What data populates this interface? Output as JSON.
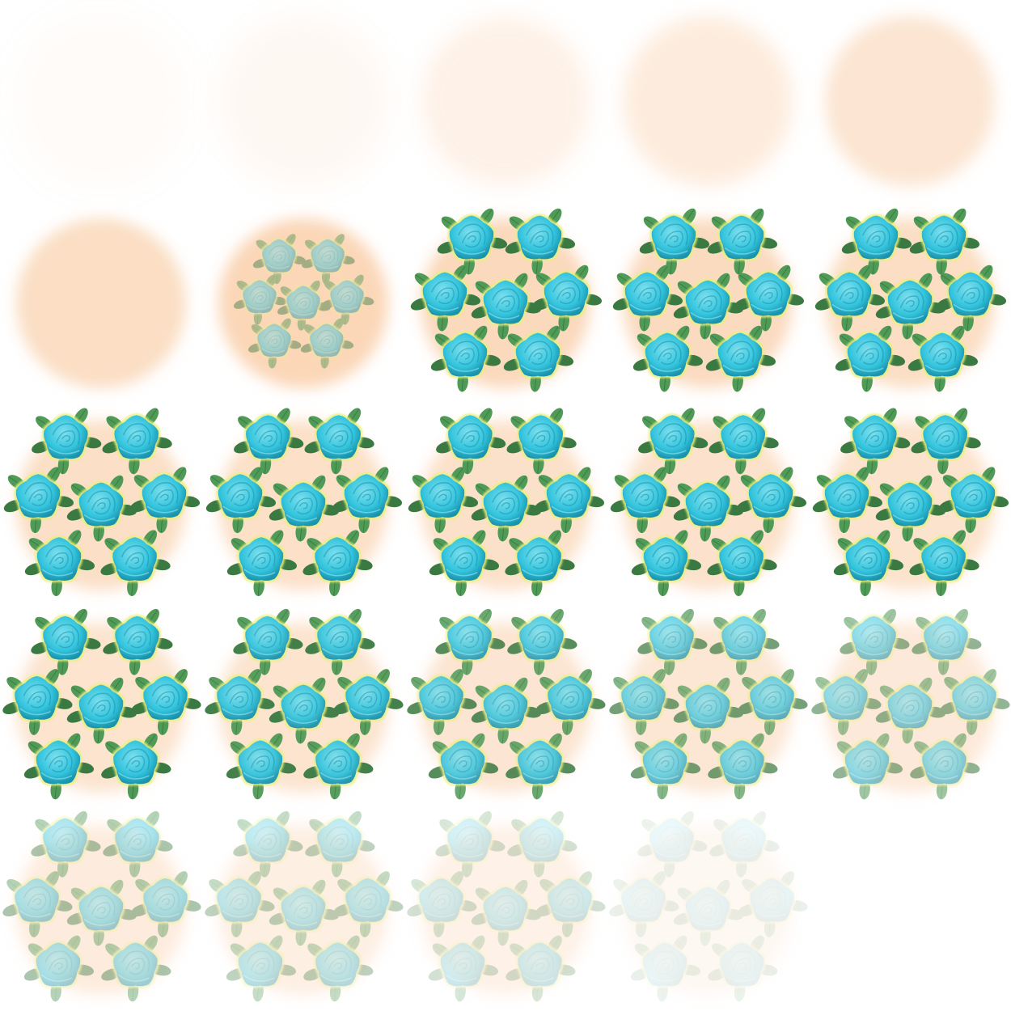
{
  "sheet": {
    "columns": 5,
    "rows": 5,
    "background": "#ffffff",
    "colors": {
      "glow": "#f9c9a0",
      "rose": "#33c4dd",
      "rose_light": "#7fe0ee",
      "rose_dark": "#1b93ad",
      "leaf": "#4f9a56",
      "leaf_dark": "#3a7a42",
      "rim": "#e9f07a"
    },
    "frames": [
      {
        "glow": 0.07,
        "glow_blur": 1.0,
        "roses": 0.0,
        "spread": 0.0
      },
      {
        "glow": 0.13,
        "glow_blur": 0.8,
        "roses": 0.0,
        "spread": 0.0
      },
      {
        "glow": 0.24,
        "glow_blur": 0.55,
        "roses": 0.0,
        "spread": 0.0
      },
      {
        "glow": 0.35,
        "glow_blur": 0.45,
        "roses": 0.0,
        "spread": 0.0
      },
      {
        "glow": 0.48,
        "glow_blur": 0.35,
        "roses": 0.0,
        "spread": 0.0
      },
      {
        "glow": 0.62,
        "glow_blur": 0.3,
        "roses": 0.0,
        "spread": 0.0
      },
      {
        "glow": 0.75,
        "glow_blur": 0.3,
        "roses": 0.45,
        "spread": 0.72
      },
      {
        "glow": 0.7,
        "glow_blur": 0.3,
        "roses": 1.0,
        "spread": 1.0
      },
      {
        "glow": 0.66,
        "glow_blur": 0.3,
        "roses": 1.0,
        "spread": 1.0
      },
      {
        "glow": 0.62,
        "glow_blur": 0.3,
        "roses": 1.0,
        "spread": 1.0
      },
      {
        "glow": 0.6,
        "glow_blur": 0.3,
        "roses": 1.0,
        "spread": 1.04
      },
      {
        "glow": 0.58,
        "glow_blur": 0.3,
        "roses": 1.0,
        "spread": 1.04
      },
      {
        "glow": 0.56,
        "glow_blur": 0.3,
        "roses": 1.0,
        "spread": 1.04
      },
      {
        "glow": 0.54,
        "glow_blur": 0.3,
        "roses": 1.0,
        "spread": 1.04
      },
      {
        "glow": 0.52,
        "glow_blur": 0.3,
        "roses": 1.0,
        "spread": 1.04
      },
      {
        "glow": 0.5,
        "glow_blur": 0.3,
        "roses": 1.0,
        "spread": 1.06
      },
      {
        "glow": 0.5,
        "glow_blur": 0.3,
        "roses": 0.95,
        "spread": 1.06
      },
      {
        "glow": 0.48,
        "glow_blur": 0.3,
        "roses": 0.85,
        "spread": 1.06
      },
      {
        "glow": 0.44,
        "glow_blur": 0.3,
        "roses": 0.7,
        "spread": 1.06
      },
      {
        "glow": 0.4,
        "glow_blur": 0.3,
        "roses": 0.55,
        "spread": 1.06
      },
      {
        "glow": 0.35,
        "glow_blur": 0.3,
        "roses": 0.42,
        "spread": 1.06
      },
      {
        "glow": 0.3,
        "glow_blur": 0.3,
        "roses": 0.32,
        "spread": 1.06
      },
      {
        "glow": 0.24,
        "glow_blur": 0.3,
        "roses": 0.22,
        "spread": 1.06
      },
      {
        "glow": 0.12,
        "glow_blur": 0.3,
        "roses": 0.1,
        "spread": 1.06
      },
      {
        "glow": 0.0,
        "glow_blur": 0.3,
        "roses": 0.0,
        "spread": 1.06
      }
    ]
  }
}
